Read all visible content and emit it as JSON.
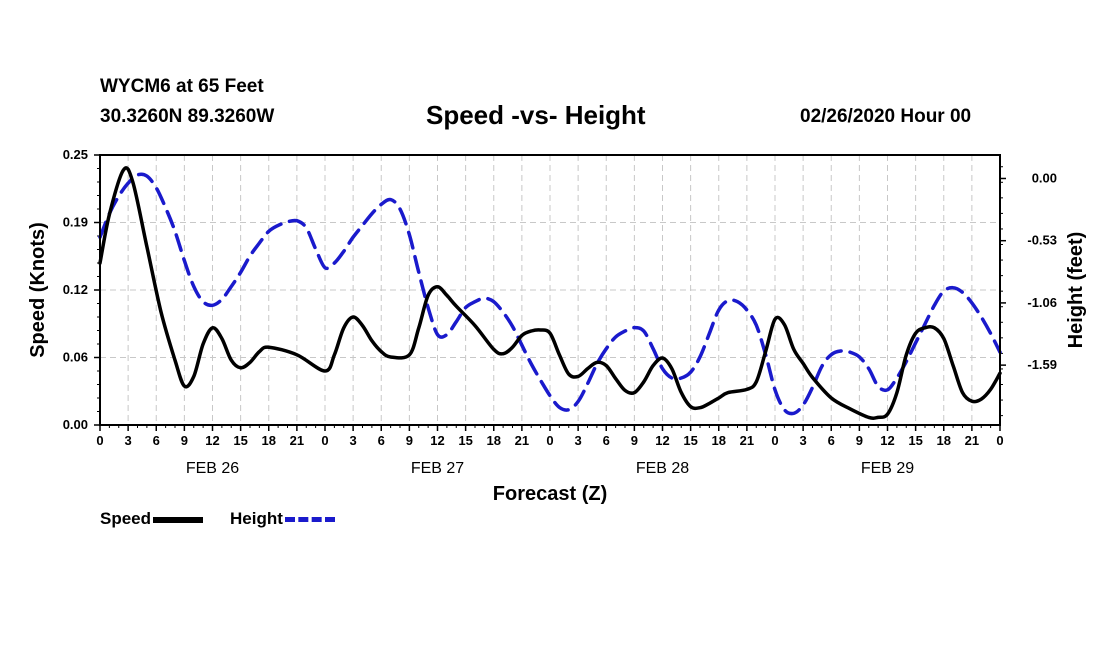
{
  "header": {
    "station": "WYCM6 at 65 Feet",
    "coords": "30.3260N 89.3260W",
    "title": "Speed -vs- Height",
    "datetime": "02/26/2020 Hour 00"
  },
  "colors": {
    "speed": "#000000",
    "height": "#1a1acc",
    "grid": "#c8c8c8"
  },
  "legend": {
    "speed_label": "Speed",
    "height_label": "Height"
  },
  "chart_data": {
    "type": "line",
    "title": "Speed -vs- Height",
    "xlabel": "Forecast (Z)",
    "ylabel": "Speed (Knots)",
    "y2label": "Height (feet)",
    "x_hours": [
      0,
      96
    ],
    "xtick_labels": [
      "0",
      "3",
      "6",
      "9",
      "12",
      "15",
      "18",
      "21",
      "0",
      "3",
      "6",
      "9",
      "12",
      "15",
      "18",
      "21",
      "0",
      "3",
      "6",
      "9",
      "12",
      "15",
      "18",
      "21",
      "0",
      "3",
      "6",
      "9",
      "12",
      "15",
      "18",
      "21",
      "0"
    ],
    "date_labels": [
      {
        "hour": 12,
        "label": "FEB 26"
      },
      {
        "hour": 36,
        "label": "FEB 27"
      },
      {
        "hour": 60,
        "label": "FEB 28"
      },
      {
        "hour": 84,
        "label": "FEB 29"
      }
    ],
    "ylim": [
      0,
      0.25
    ],
    "yticks": [
      "0.00",
      "0.06",
      "0.12",
      "0.19",
      "0.25"
    ],
    "y2lim": [
      -2.1,
      0.2
    ],
    "y2ticks": [
      {
        "value": 0.0,
        "label": "0.00"
      },
      {
        "value": -0.53,
        "label": "-0.53"
      },
      {
        "value": -1.06,
        "label": "-1.06"
      },
      {
        "value": -1.59,
        "label": "-1.59"
      }
    ],
    "series": [
      {
        "name": "Speed",
        "axis": "left",
        "style": "solid",
        "points": [
          [
            0,
            0.15
          ],
          [
            1,
            0.195
          ],
          [
            2.5,
            0.236
          ],
          [
            3.5,
            0.225
          ],
          [
            5,
            0.165
          ],
          [
            6.5,
            0.105
          ],
          [
            8,
            0.06
          ],
          [
            9,
            0.036
          ],
          [
            10,
            0.045
          ],
          [
            11,
            0.075
          ],
          [
            12,
            0.09
          ],
          [
            13,
            0.08
          ],
          [
            14,
            0.06
          ],
          [
            15,
            0.053
          ],
          [
            16,
            0.058
          ],
          [
            17,
            0.068
          ],
          [
            18,
            0.072
          ],
          [
            21,
            0.065
          ],
          [
            24,
            0.05
          ],
          [
            25,
            0.065
          ],
          [
            26,
            0.09
          ],
          [
            27,
            0.1
          ],
          [
            28,
            0.092
          ],
          [
            29,
            0.078
          ],
          [
            30,
            0.068
          ],
          [
            31,
            0.063
          ],
          [
            33,
            0.065
          ],
          [
            34,
            0.09
          ],
          [
            35,
            0.12
          ],
          [
            36,
            0.128
          ],
          [
            37,
            0.12
          ],
          [
            38,
            0.11
          ],
          [
            40,
            0.092
          ],
          [
            42,
            0.07
          ],
          [
            43,
            0.066
          ],
          [
            44,
            0.072
          ],
          [
            45,
            0.083
          ],
          [
            46,
            0.087
          ],
          [
            47,
            0.088
          ],
          [
            48,
            0.085
          ],
          [
            49,
            0.065
          ],
          [
            50,
            0.047
          ],
          [
            51,
            0.045
          ],
          [
            52,
            0.052
          ],
          [
            53,
            0.058
          ],
          [
            54,
            0.055
          ],
          [
            55,
            0.043
          ],
          [
            56,
            0.032
          ],
          [
            57,
            0.03
          ],
          [
            58,
            0.04
          ],
          [
            59,
            0.055
          ],
          [
            60,
            0.062
          ],
          [
            61,
            0.052
          ],
          [
            62,
            0.03
          ],
          [
            63,
            0.017
          ],
          [
            64,
            0.016
          ],
          [
            65,
            0.02
          ],
          [
            66,
            0.025
          ],
          [
            67,
            0.03
          ],
          [
            69,
            0.033
          ],
          [
            70,
            0.04
          ],
          [
            71,
            0.068
          ],
          [
            72,
            0.098
          ],
          [
            73,
            0.093
          ],
          [
            74,
            0.07
          ],
          [
            75,
            0.057
          ],
          [
            76,
            0.044
          ],
          [
            78,
            0.025
          ],
          [
            80,
            0.015
          ],
          [
            82,
            0.007
          ],
          [
            83,
            0.007
          ],
          [
            84,
            0.01
          ],
          [
            85,
            0.03
          ],
          [
            86,
            0.065
          ],
          [
            87,
            0.085
          ],
          [
            88,
            0.09
          ],
          [
            89,
            0.09
          ],
          [
            90,
            0.08
          ],
          [
            91,
            0.055
          ],
          [
            92,
            0.03
          ],
          [
            93,
            0.022
          ],
          [
            94,
            0.024
          ],
          [
            95,
            0.033
          ],
          [
            96,
            0.048
          ]
        ]
      },
      {
        "name": "Height",
        "axis": "right",
        "style": "dashed",
        "points": [
          [
            0,
            -0.5
          ],
          [
            1,
            -0.3
          ],
          [
            2,
            -0.15
          ],
          [
            3,
            -0.04
          ],
          [
            4,
            0.03
          ],
          [
            5,
            0.02
          ],
          [
            6,
            -0.08
          ],
          [
            7,
            -0.25
          ],
          [
            8,
            -0.45
          ],
          [
            9,
            -0.7
          ],
          [
            10,
            -0.92
          ],
          [
            11,
            -1.05
          ],
          [
            12,
            -1.08
          ],
          [
            13,
            -1.03
          ],
          [
            14,
            -0.92
          ],
          [
            15,
            -0.8
          ],
          [
            16,
            -0.66
          ],
          [
            17,
            -0.55
          ],
          [
            18,
            -0.45
          ],
          [
            19,
            -0.4
          ],
          [
            20,
            -0.37
          ],
          [
            21,
            -0.36
          ],
          [
            22,
            -0.42
          ],
          [
            23,
            -0.6
          ],
          [
            24,
            -0.76
          ],
          [
            25,
            -0.72
          ],
          [
            26,
            -0.62
          ],
          [
            27,
            -0.5
          ],
          [
            28,
            -0.4
          ],
          [
            29,
            -0.3
          ],
          [
            30,
            -0.22
          ],
          [
            31,
            -0.18
          ],
          [
            32,
            -0.26
          ],
          [
            33,
            -0.48
          ],
          [
            34,
            -0.8
          ],
          [
            35,
            -1.1
          ],
          [
            36,
            -1.33
          ],
          [
            37,
            -1.33
          ],
          [
            38,
            -1.22
          ],
          [
            39,
            -1.1
          ],
          [
            40,
            -1.05
          ],
          [
            41,
            -1.02
          ],
          [
            42,
            -1.05
          ],
          [
            43,
            -1.14
          ],
          [
            44,
            -1.26
          ],
          [
            45,
            -1.42
          ],
          [
            46,
            -1.58
          ],
          [
            47,
            -1.72
          ],
          [
            48,
            -1.85
          ],
          [
            49,
            -1.95
          ],
          [
            50,
            -1.97
          ],
          [
            51,
            -1.9
          ],
          [
            52,
            -1.75
          ],
          [
            53,
            -1.58
          ],
          [
            54,
            -1.45
          ],
          [
            55,
            -1.35
          ],
          [
            56,
            -1.3
          ],
          [
            57,
            -1.27
          ],
          [
            58,
            -1.3
          ],
          [
            59,
            -1.45
          ],
          [
            60,
            -1.62
          ],
          [
            61,
            -1.7
          ],
          [
            62,
            -1.7
          ],
          [
            63,
            -1.65
          ],
          [
            64,
            -1.52
          ],
          [
            65,
            -1.32
          ],
          [
            66,
            -1.12
          ],
          [
            67,
            -1.04
          ],
          [
            68,
            -1.05
          ],
          [
            69,
            -1.12
          ],
          [
            70,
            -1.25
          ],
          [
            71,
            -1.5
          ],
          [
            72,
            -1.8
          ],
          [
            73,
            -1.97
          ],
          [
            74,
            -2.0
          ],
          [
            75,
            -1.93
          ],
          [
            76,
            -1.78
          ],
          [
            77,
            -1.6
          ],
          [
            78,
            -1.5
          ],
          [
            79,
            -1.47
          ],
          [
            80,
            -1.48
          ],
          [
            81,
            -1.52
          ],
          [
            82,
            -1.62
          ],
          [
            83,
            -1.77
          ],
          [
            84,
            -1.8
          ],
          [
            85,
            -1.7
          ],
          [
            86,
            -1.56
          ],
          [
            87,
            -1.4
          ],
          [
            88,
            -1.24
          ],
          [
            89,
            -1.08
          ],
          [
            90,
            -0.96
          ],
          [
            91,
            -0.93
          ],
          [
            92,
            -0.97
          ],
          [
            93,
            -1.06
          ],
          [
            94,
            -1.18
          ],
          [
            95,
            -1.32
          ],
          [
            96,
            -1.48
          ]
        ]
      }
    ]
  }
}
